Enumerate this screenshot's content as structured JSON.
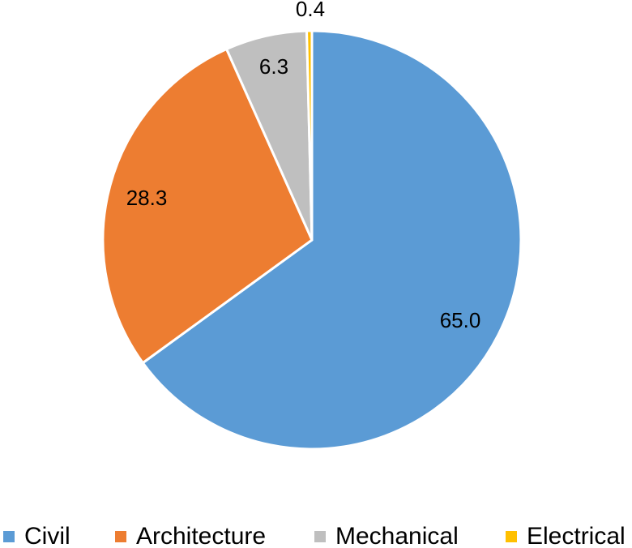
{
  "chart_data": {
    "type": "pie",
    "title": "",
    "categories": [
      "Civil",
      "Architecture",
      "Mechanical",
      "Electrical"
    ],
    "values": [
      65.0,
      28.3,
      6.3,
      0.4
    ],
    "value_labels": [
      "65.0",
      "28.3",
      "6.3",
      "0.4"
    ],
    "colors": [
      "#5B9BD5",
      "#ED7D31",
      "#BFBFBF",
      "#FFC000"
    ],
    "start_angle_deg": 0,
    "direction": "clockwise",
    "legend": {
      "placement": "bottom",
      "items": [
        {
          "label": "Civil",
          "color": "#5B9BD5"
        },
        {
          "label": "Architecture",
          "color": "#ED7D31"
        },
        {
          "label": "Mechanical",
          "color": "#BFBFBF"
        },
        {
          "label": "Electrical",
          "color": "#FFC000"
        }
      ]
    }
  }
}
